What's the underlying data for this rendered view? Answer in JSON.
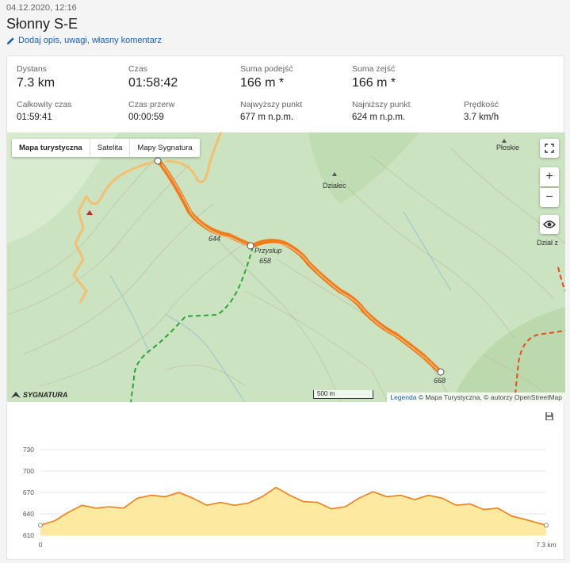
{
  "header": {
    "date": "04.12.2020, 12:16",
    "title": "Słonny S-E",
    "edit_link": "Dodaj opis, uwagi, własny komentarz"
  },
  "stats": [
    {
      "label": "Dystans",
      "value": "7.3 km",
      "size": "big"
    },
    {
      "label": "Czas",
      "value": "01:58:42",
      "size": "big"
    },
    {
      "label": "Suma podejść",
      "value": "166 m *",
      "size": "big"
    },
    {
      "label": "Suma zejść",
      "value": "166 m *",
      "size": "big"
    },
    {
      "label": "Całkowity czas",
      "value": "01:59:41",
      "size": "small"
    },
    {
      "label": "Czas przerw",
      "value": "00:00:59",
      "size": "small"
    },
    {
      "label": "Najwyższy punkt",
      "value": "677 m n.p.m.",
      "size": "small"
    },
    {
      "label": "Najniższy punkt",
      "value": "624 m n.p.m.",
      "size": "small"
    },
    {
      "label": "Prędkość",
      "value": "3.7 km/h",
      "size": "small"
    }
  ],
  "map": {
    "tabs": [
      "Mapa turystyczna",
      "Satelita",
      "Mapy Sygnatura"
    ],
    "active_tab": "Mapa turystyczna",
    "labels": {
      "dzialec": "Działec",
      "ploskie": "Płoskie",
      "przyslup": "Przysłup",
      "przyslup_height": "658",
      "h644": "644",
      "h668": "668",
      "dzial": "Dział z"
    },
    "scale": "500 m",
    "legend": "Legenda",
    "attribution": "© Mapa Turystyczna, © autorzy OpenStreetMap",
    "logo": "SYGNATURA",
    "track_color": "#f07d1a"
  },
  "chart_data": {
    "type": "area",
    "ylim": [
      610,
      730
    ],
    "yticks": [
      "730",
      "700",
      "670",
      "640",
      "610"
    ],
    "x_start_label": "0",
    "x_end_label": "7.3 km",
    "x": [
      0,
      0.2,
      0.4,
      0.6,
      0.8,
      1.0,
      1.2,
      1.4,
      1.6,
      1.8,
      2.0,
      2.2,
      2.4,
      2.6,
      2.8,
      3.0,
      3.2,
      3.4,
      3.6,
      3.8,
      4.0,
      4.2,
      4.4,
      4.6,
      4.8,
      5.0,
      5.2,
      5.4,
      5.6,
      5.8,
      6.0,
      6.2,
      6.4,
      6.6,
      6.8,
      7.0,
      7.3
    ],
    "values": [
      624,
      630,
      642,
      652,
      648,
      650,
      648,
      662,
      666,
      664,
      670,
      662,
      652,
      656,
      652,
      655,
      664,
      677,
      666,
      657,
      656,
      647,
      650,
      662,
      671,
      664,
      666,
      660,
      666,
      662,
      652,
      654,
      646,
      648,
      637,
      632,
      624
    ],
    "fill_color": "#fdeaa0",
    "line_color": "#f07d1a"
  },
  "icons": {
    "edit": "pencil-icon",
    "fullscreen": "fullscreen-icon",
    "zoom_in": "plus-icon",
    "zoom_out": "minus-icon",
    "layers": "eye-icon",
    "save": "save-icon"
  }
}
